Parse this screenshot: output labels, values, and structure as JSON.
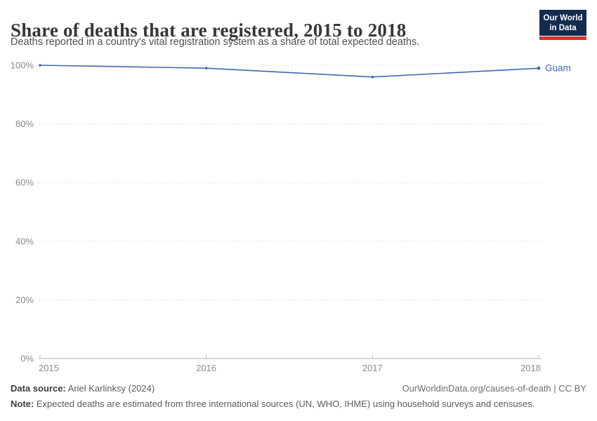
{
  "header": {
    "title": "Share of deaths that are registered, 2015 to 2018",
    "subtitle": "Deaths reported in a country's vital registration system as a share of total expected deaths."
  },
  "logo": {
    "line1": "Our World",
    "line2": "in Data",
    "bg": "#132c4e",
    "bar": "#d7352c"
  },
  "chart_data": {
    "type": "line",
    "title": "Share of deaths that are registered, 2015 to 2018",
    "x": [
      2015,
      2016,
      2017,
      2018
    ],
    "series": [
      {
        "name": "Guam",
        "values": [
          100,
          99,
          96,
          99
        ],
        "color": "#4266ab"
      }
    ],
    "ylim": [
      0,
      100
    ],
    "yticks": [
      0,
      20,
      40,
      60,
      80,
      100
    ],
    "ytick_suffix": "%",
    "grid": "horizontal-dashed",
    "legend": "line-end-label"
  },
  "colors": {
    "line": "#4266ab",
    "grid": "#dadada",
    "axis": "#b5b5b5",
    "tick_text": "#8a8a8a"
  },
  "footer": {
    "datasource_label": "Data source:",
    "datasource_value": " Ariel Karlinksy (2024)",
    "attribution": "OurWorldinData.org/causes-of-death | CC BY",
    "note_label": "Note:",
    "note_value": " Expected deaths are estimated from three international sources (UN, WHO, IHME) using household surveys and censuses."
  }
}
